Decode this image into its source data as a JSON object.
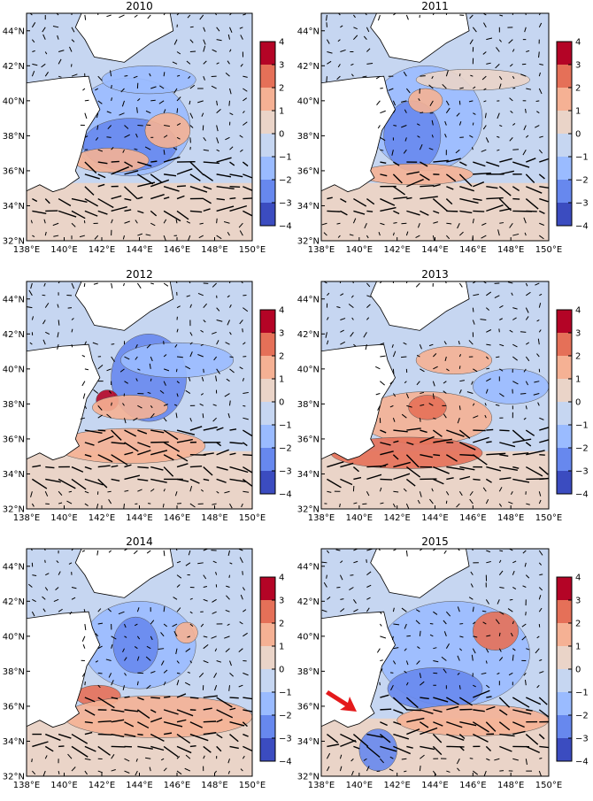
{
  "panels": [
    {
      "title": "2010"
    },
    {
      "title": "2011"
    },
    {
      "title": "2012"
    },
    {
      "title": "2013"
    },
    {
      "title": "2014"
    },
    {
      "title": "2015"
    }
  ],
  "x_tick_labels": [
    "138°E",
    "140°E",
    "142°E",
    "144°E",
    "146°E",
    "148°E",
    "150°E"
  ],
  "y_tick_labels": [
    "32°N",
    "34°N",
    "36°N",
    "38°N",
    "40°N",
    "42°N",
    "44°N"
  ],
  "colorbar_ticks": [
    "4",
    "3",
    "2",
    "1",
    "0",
    "−1",
    "−2",
    "−3",
    "−4"
  ]
}
